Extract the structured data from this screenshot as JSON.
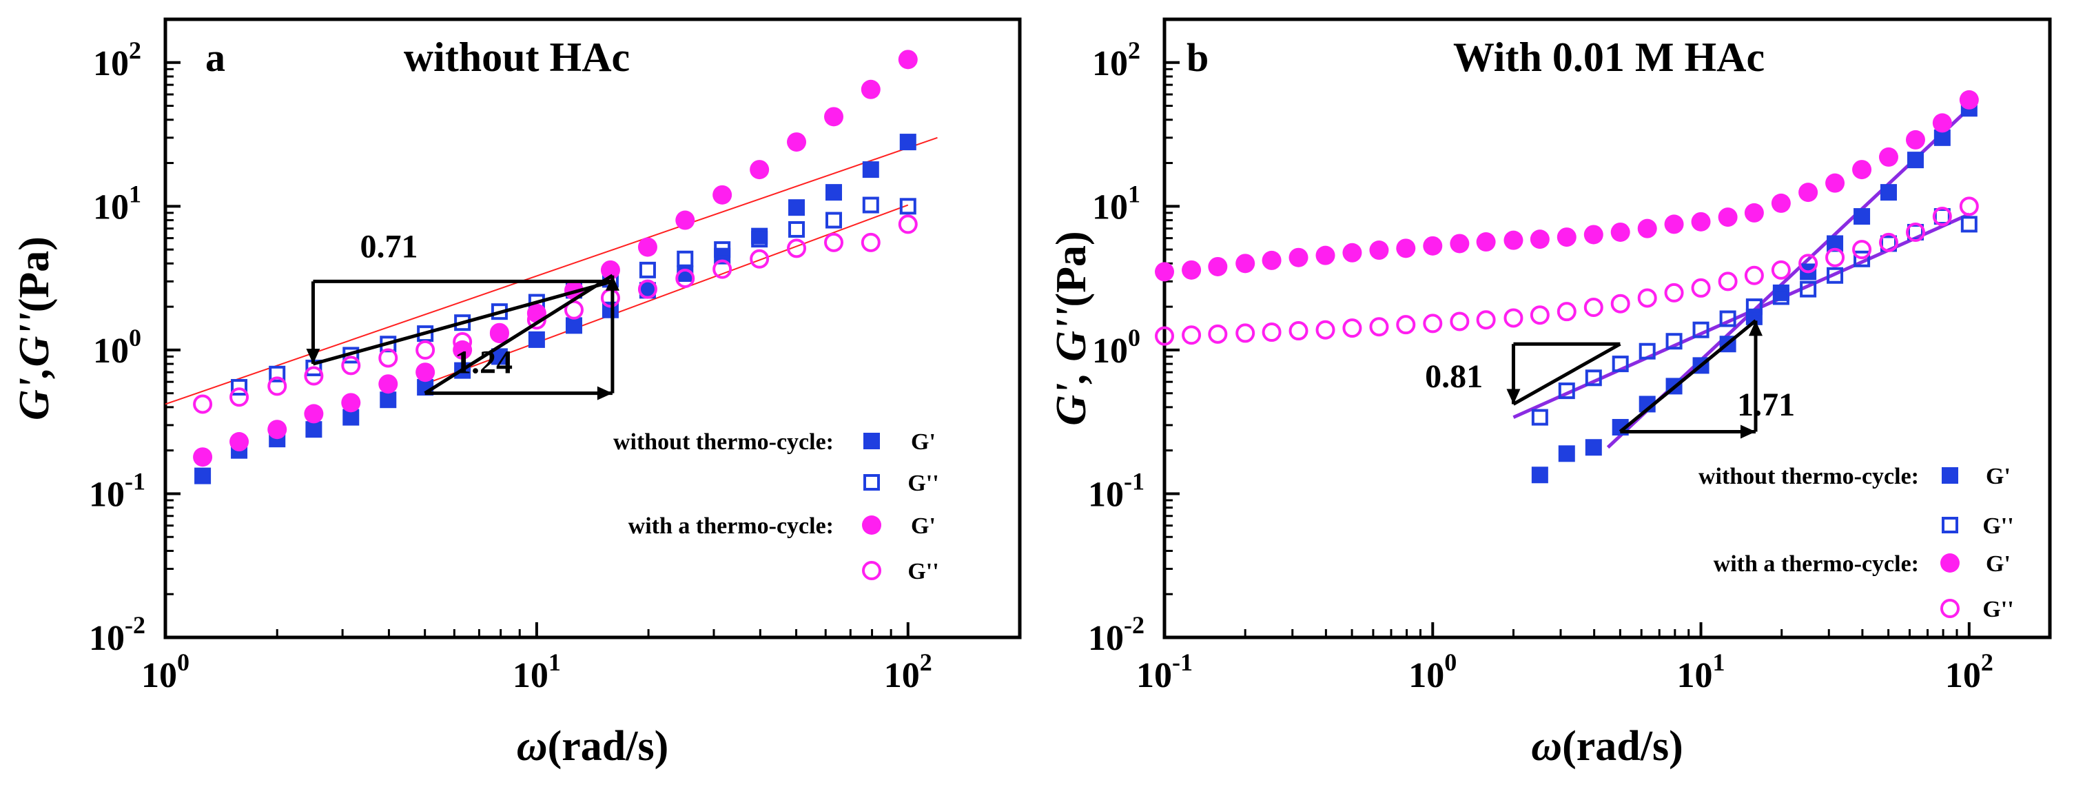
{
  "figure": {
    "panel_count": 2
  },
  "chart_data": [
    {
      "type": "scatter",
      "panel_label": "a",
      "title": "without HAc",
      "xlabel": {
        "symbol": "ω",
        "unit": "(rad/s)"
      },
      "ylabel": {
        "symbol": "G',G''",
        "unit": "(Pa)"
      },
      "xscale": "log",
      "yscale": "log",
      "xlim": [
        1,
        200
      ],
      "ylim": [
        0.01,
        200
      ],
      "x_ticks": [
        {
          "value": 1,
          "base": "10",
          "exp": "0"
        },
        {
          "value": 10,
          "base": "10",
          "exp": "1"
        },
        {
          "value": 100,
          "base": "10",
          "exp": "2"
        }
      ],
      "y_ticks": [
        {
          "value": 0.01,
          "base": "10",
          "exp": "-2"
        },
        {
          "value": 0.1,
          "base": "10",
          "exp": "-1"
        },
        {
          "value": 1,
          "base": "10",
          "exp": "0"
        },
        {
          "value": 10,
          "base": "10",
          "exp": "1"
        },
        {
          "value": 100,
          "base": "10",
          "exp": "2"
        }
      ],
      "series": [
        {
          "name": "G'",
          "group": "without thermo-cycle",
          "marker": "square",
          "filled": true,
          "color": "#1f3fe0",
          "x": [
            1.26,
            1.58,
            2.0,
            2.51,
            3.16,
            3.98,
            5.01,
            6.31,
            7.94,
            10.0,
            12.6,
            15.8,
            19.9,
            25.1,
            31.6,
            39.8,
            50.1,
            63.1,
            79.4,
            100.0
          ],
          "y": [
            0.133,
            0.2,
            0.24,
            0.28,
            0.34,
            0.45,
            0.55,
            0.72,
            0.9,
            1.18,
            1.48,
            1.9,
            2.6,
            3.4,
            4.5,
            6.2,
            9.8,
            12.5,
            18.0,
            28.0
          ]
        },
        {
          "name": "G''",
          "group": "without thermo-cycle",
          "marker": "square",
          "filled": false,
          "color": "#1f3fe0",
          "x": [
            1.58,
            2.0,
            2.51,
            3.16,
            3.98,
            5.01,
            6.31,
            7.94,
            10.0,
            12.6,
            15.8,
            19.9,
            25.1,
            31.6,
            39.8,
            50.1,
            63.1,
            79.4,
            100.0
          ],
          "y": [
            0.55,
            0.68,
            0.75,
            0.92,
            1.1,
            1.3,
            1.55,
            1.85,
            2.15,
            2.6,
            3.1,
            3.6,
            4.3,
            5.0,
            5.9,
            6.9,
            8.0,
            10.2,
            10.0
          ]
        },
        {
          "name": "G'",
          "group": "with a thermo-cycle",
          "marker": "circle",
          "filled": true,
          "color": "#ff1ff0",
          "x": [
            1.26,
            1.58,
            2.0,
            2.51,
            3.16,
            3.98,
            5.01,
            6.31,
            7.94,
            10.0,
            12.6,
            15.8,
            19.9,
            25.1,
            31.6,
            39.8,
            50.1,
            63.1,
            79.4,
            100.0
          ],
          "y": [
            0.18,
            0.23,
            0.28,
            0.36,
            0.43,
            0.58,
            0.7,
            1.0,
            1.3,
            1.8,
            2.6,
            3.6,
            5.2,
            8.0,
            12.0,
            18.0,
            28.0,
            42.0,
            65.0,
            105.0
          ]
        },
        {
          "name": "G''",
          "group": "with a thermo-cycle",
          "marker": "circle",
          "filled": false,
          "color": "#ff1ff0",
          "x": [
            1.26,
            1.58,
            2.0,
            2.51,
            3.16,
            3.98,
            5.01,
            6.31,
            7.94,
            10.0,
            12.6,
            15.8,
            19.9,
            25.1,
            31.6,
            39.8,
            50.1,
            63.1,
            79.4,
            100.0
          ],
          "y": [
            0.42,
            0.47,
            0.56,
            0.66,
            0.78,
            0.88,
            1.0,
            1.14,
            1.32,
            1.62,
            1.9,
            2.3,
            2.65,
            3.15,
            3.65,
            4.3,
            5.1,
            5.6,
            5.6,
            7.5
          ]
        }
      ],
      "fit_lines": [
        {
          "color": "#ff2020",
          "points": [
            [
              1.0,
              0.42
            ],
            [
              120.0,
              30.0
            ]
          ]
        },
        {
          "color": "#ff2020",
          "points": [
            [
              5.0,
              0.58
            ],
            [
              100.0,
              10.2
            ]
          ]
        }
      ],
      "slope_annotations": [
        {
          "label": "0.71",
          "type": "upper",
          "start": [
            2.5,
            3.0
          ],
          "end": [
            16.0,
            3.0
          ],
          "vertical_to": 0.8,
          "label_at": [
            4.0,
            4.4
          ]
        },
        {
          "label": "1.24",
          "type": "lower",
          "start": [
            5.0,
            0.5
          ],
          "end": [
            16.0,
            0.5
          ],
          "vertical_to": 3.3,
          "label_at": [
            7.2,
            0.69
          ]
        }
      ],
      "legend": {
        "placement": "bottom-right",
        "entries": [
          {
            "group_label": "without thermo-cycle:",
            "symbol": "G'",
            "marker": "square",
            "filled": true,
            "color": "#1f3fe0"
          },
          {
            "group_label": "",
            "symbol": "G''",
            "marker": "square",
            "filled": false,
            "color": "#1f3fe0"
          },
          {
            "group_label": "with a thermo-cycle:",
            "symbol": "G'",
            "marker": "circle",
            "filled": true,
            "color": "#ff1ff0"
          },
          {
            "group_label": "",
            "symbol": "G''",
            "marker": "circle",
            "filled": false,
            "color": "#ff1ff0"
          }
        ]
      }
    },
    {
      "type": "scatter",
      "panel_label": "b",
      "title": "With 0.01 M HAc",
      "xlabel": {
        "symbol": "ω",
        "unit": "(rad/s)"
      },
      "ylabel": {
        "symbol": "G', G''",
        "unit": "(Pa)"
      },
      "xscale": "log",
      "yscale": "log",
      "xlim": [
        0.1,
        200
      ],
      "ylim": [
        0.01,
        200
      ],
      "x_ticks": [
        {
          "value": 0.1,
          "base": "10",
          "exp": "-1"
        },
        {
          "value": 1,
          "base": "10",
          "exp": "0"
        },
        {
          "value": 10,
          "base": "10",
          "exp": "1"
        },
        {
          "value": 100,
          "base": "10",
          "exp": "2"
        }
      ],
      "y_ticks": [
        {
          "value": 0.01,
          "base": "10",
          "exp": "-2"
        },
        {
          "value": 0.1,
          "base": "10",
          "exp": "-1"
        },
        {
          "value": 1,
          "base": "10",
          "exp": "0"
        },
        {
          "value": 10,
          "base": "10",
          "exp": "1"
        },
        {
          "value": 100,
          "base": "10",
          "exp": "2"
        }
      ],
      "series": [
        {
          "name": "G'",
          "group": "without thermo-cycle",
          "marker": "square",
          "filled": true,
          "color": "#1f3fe0",
          "x": [
            2.51,
            3.16,
            3.98,
            5.01,
            6.31,
            7.94,
            10.0,
            12.6,
            15.8,
            19.9,
            25.1,
            31.6,
            39.8,
            50.1,
            63.1,
            79.4,
            100.0
          ],
          "y": [
            0.135,
            0.19,
            0.21,
            0.29,
            0.42,
            0.56,
            0.78,
            1.1,
            1.7,
            2.5,
            3.5,
            5.5,
            8.5,
            12.5,
            21.0,
            30.0,
            48.0
          ]
        },
        {
          "name": "G''",
          "group": "without thermo-cycle",
          "marker": "square",
          "filled": false,
          "color": "#1f3fe0",
          "x": [
            2.51,
            3.16,
            3.98,
            5.01,
            6.31,
            7.94,
            10.0,
            12.6,
            15.8,
            19.9,
            25.1,
            31.6,
            39.8,
            50.1,
            63.1,
            79.4,
            100.0
          ],
          "y": [
            0.34,
            0.52,
            0.64,
            0.8,
            0.98,
            1.15,
            1.38,
            1.65,
            2.0,
            2.35,
            2.65,
            3.3,
            4.3,
            5.5,
            6.6,
            8.5,
            7.5
          ]
        },
        {
          "name": "G'",
          "group": "with a thermo-cycle",
          "marker": "circle",
          "filled": true,
          "color": "#ff1ff0",
          "x": [
            0.1,
            0.126,
            0.158,
            0.2,
            0.251,
            0.316,
            0.398,
            0.501,
            0.631,
            0.794,
            1.0,
            1.26,
            1.58,
            2.0,
            2.51,
            3.16,
            3.98,
            5.01,
            6.31,
            7.94,
            10.0,
            12.6,
            15.8,
            19.9,
            25.1,
            31.6,
            39.8,
            50.1,
            63.1,
            79.4,
            100.0
          ],
          "y": [
            3.5,
            3.6,
            3.8,
            4.0,
            4.2,
            4.4,
            4.55,
            4.75,
            4.95,
            5.1,
            5.3,
            5.5,
            5.65,
            5.8,
            5.9,
            6.1,
            6.35,
            6.6,
            7.0,
            7.5,
            7.8,
            8.4,
            9.0,
            10.5,
            12.5,
            14.5,
            18.0,
            22.0,
            29.0,
            38.0,
            55.0
          ]
        },
        {
          "name": "G''",
          "group": "with a thermo-cycle",
          "marker": "circle",
          "filled": false,
          "color": "#ff1ff0",
          "x": [
            0.1,
            0.126,
            0.158,
            0.2,
            0.251,
            0.316,
            0.398,
            0.501,
            0.631,
            0.794,
            1.0,
            1.26,
            1.58,
            2.0,
            2.51,
            3.16,
            3.98,
            5.01,
            6.31,
            7.94,
            10.0,
            12.6,
            15.8,
            19.9,
            25.1,
            31.6,
            39.8,
            50.1,
            63.1,
            79.4,
            100.0
          ],
          "y": [
            1.25,
            1.27,
            1.29,
            1.31,
            1.33,
            1.36,
            1.38,
            1.42,
            1.45,
            1.5,
            1.53,
            1.58,
            1.62,
            1.67,
            1.75,
            1.85,
            1.98,
            2.1,
            2.3,
            2.5,
            2.7,
            3.0,
            3.3,
            3.6,
            4.0,
            4.4,
            5.0,
            5.6,
            6.6,
            8.5,
            10.0
          ]
        }
      ],
      "fit_lines": [
        {
          "color": "#8a2be2",
          "points": [
            [
              2.0,
              0.34
            ],
            [
              100.0,
              8.8
            ]
          ]
        },
        {
          "color": "#8a2be2",
          "points": [
            [
              4.5,
              0.21
            ],
            [
              100.0,
              48.0
            ]
          ]
        }
      ],
      "slope_annotations": [
        {
          "label": "0.81",
          "type": "upper",
          "start": [
            2.0,
            1.1
          ],
          "end": [
            5.0,
            1.1
          ],
          "vertical_to": 0.42,
          "label_at": [
            1.2,
            0.55
          ]
        },
        {
          "label": "1.71",
          "type": "lower",
          "start": [
            5.0,
            0.27
          ],
          "end": [
            16.0,
            0.27
          ],
          "vertical_to": 1.6,
          "label_at": [
            17.5,
            0.35
          ]
        }
      ],
      "legend": {
        "placement": "bottom-right",
        "entries": [
          {
            "group_label": "without thermo-cycle:",
            "symbol": "G'",
            "marker": "square",
            "filled": true,
            "color": "#1f3fe0"
          },
          {
            "group_label": "",
            "symbol": "G''",
            "marker": "square",
            "filled": false,
            "color": "#1f3fe0"
          },
          {
            "group_label": "with a thermo-cycle:",
            "symbol": "G'",
            "marker": "circle",
            "filled": true,
            "color": "#ff1ff0"
          },
          {
            "group_label": "",
            "symbol": "G''",
            "marker": "circle",
            "filled": false,
            "color": "#ff1ff0"
          }
        ]
      }
    }
  ]
}
